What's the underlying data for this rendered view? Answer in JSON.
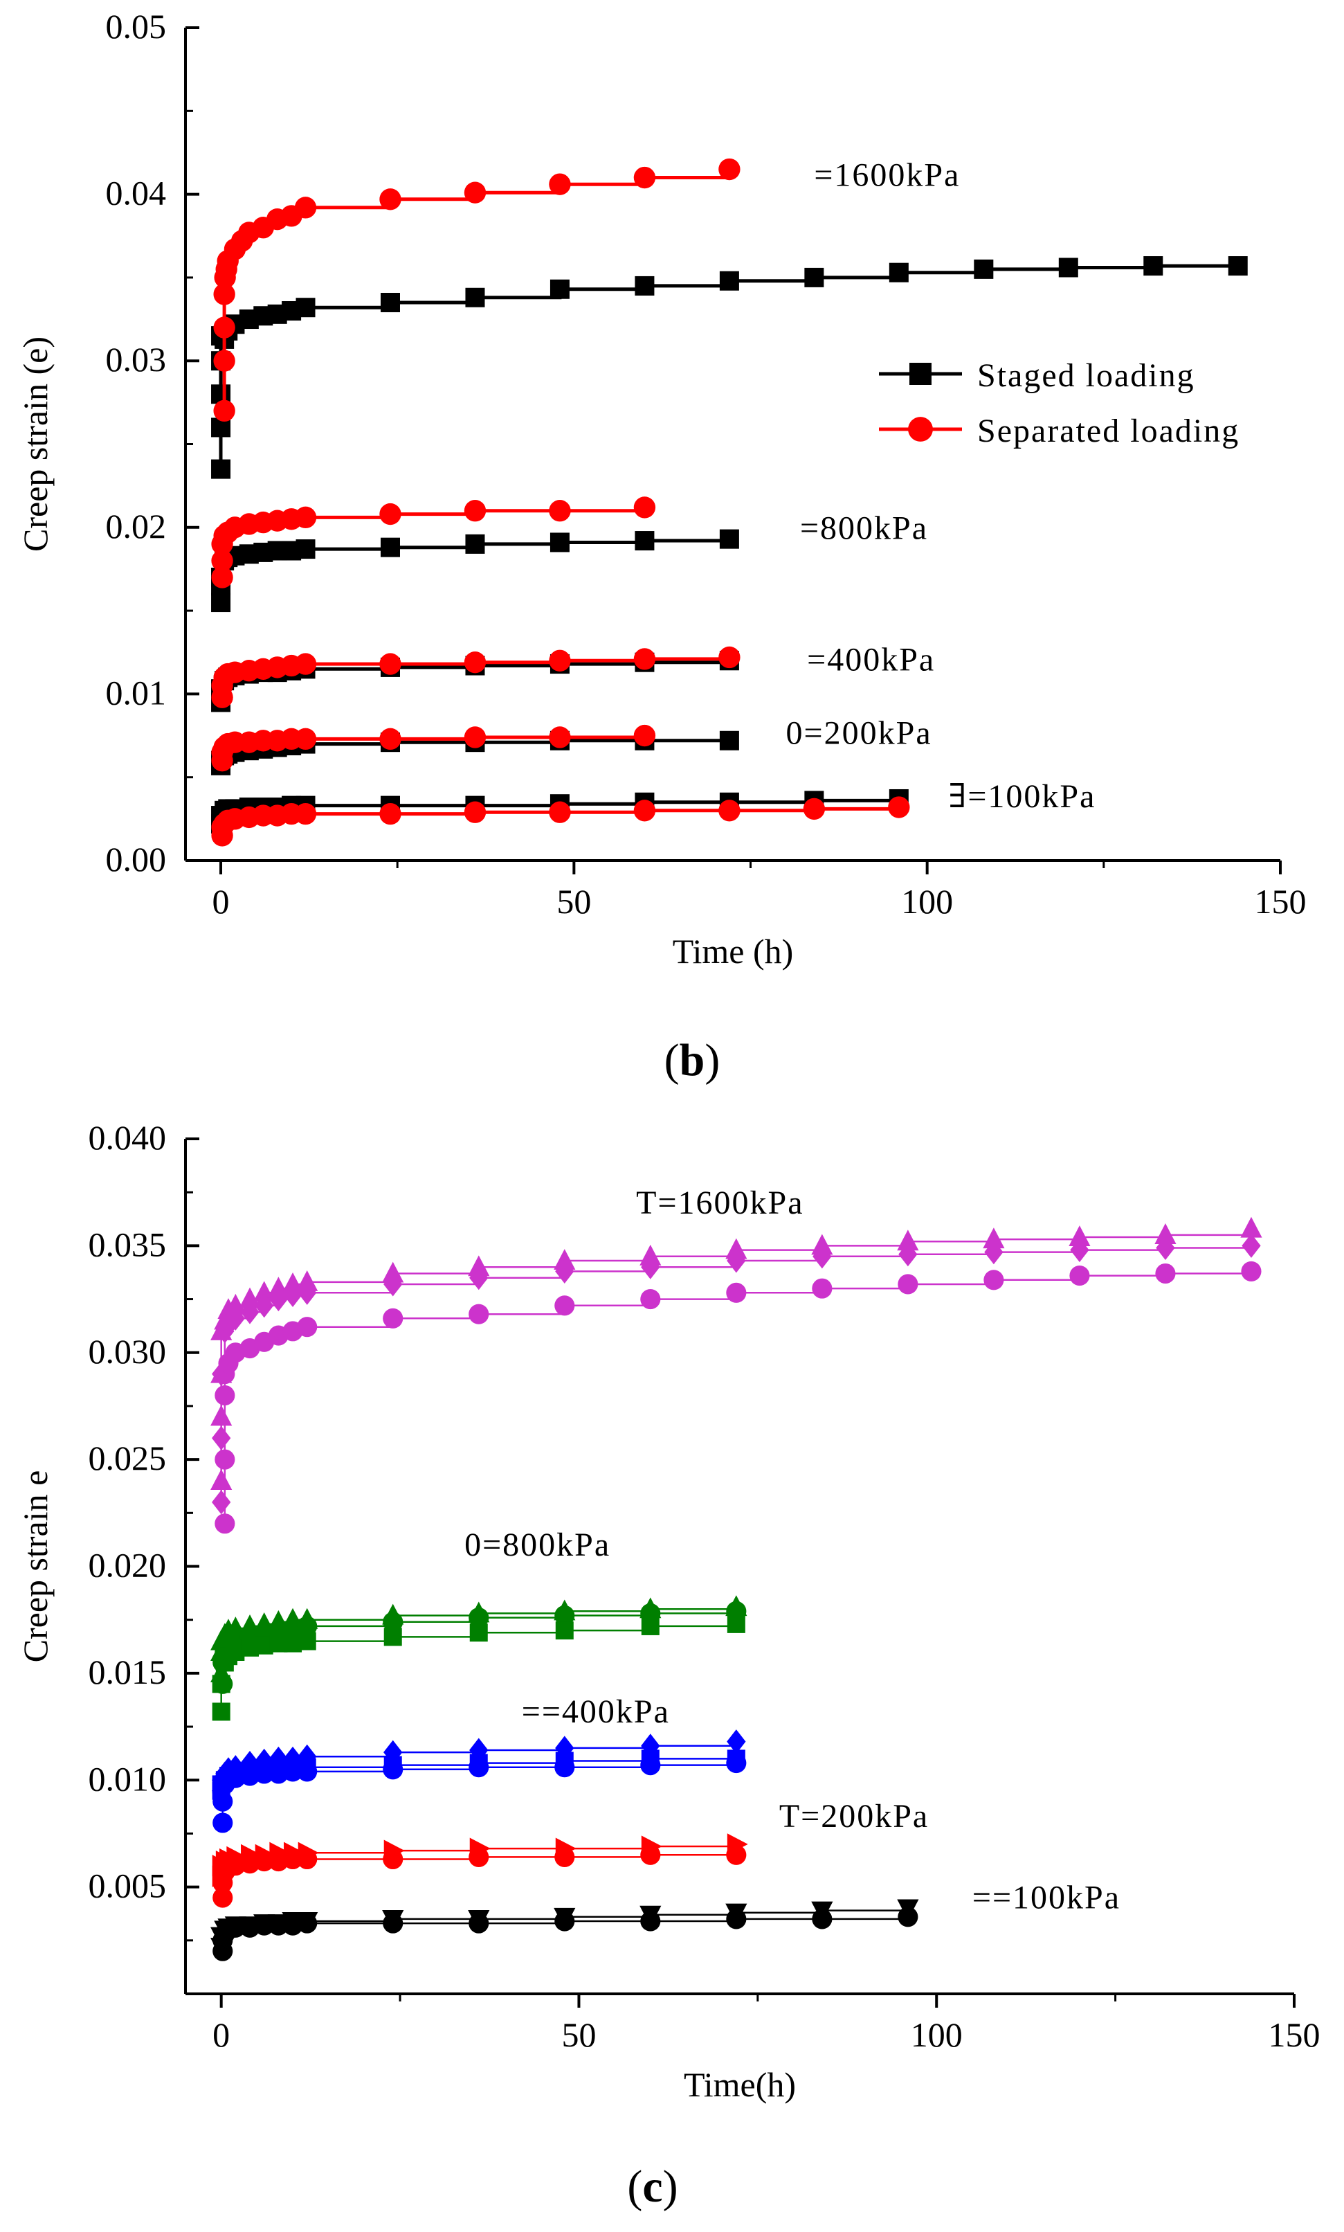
{
  "chart_data": [
    {
      "type": "line",
      "panel_label": "b",
      "xlabel": "Time (h)",
      "ylabel": "Creep strain (e)",
      "xlim": [
        -5,
        150
      ],
      "ylim": [
        0.0,
        0.05
      ],
      "x_ticks": [
        "0",
        "50",
        "100",
        "150"
      ],
      "y_ticks": [
        "0.00",
        "0.01",
        "0.02",
        "0.03",
        "0.04",
        "0.05"
      ],
      "legend_position": "right-middle",
      "legend": [
        {
          "name": "Staged loading",
          "color": "#000000",
          "marker": "square"
        },
        {
          "name": "Separated loading",
          "color": "#ff0000",
          "marker": "circle"
        }
      ],
      "annotations": [
        {
          "text": "=1600kPa",
          "at": [
            84,
            0.0405
          ]
        },
        {
          "text": "=800kPa",
          "at": [
            82,
            0.0193
          ]
        },
        {
          "text": "=400kPa",
          "at": [
            83,
            0.0114
          ]
        },
        {
          "text": "0=200kPa",
          "at": [
            80,
            0.007
          ]
        },
        {
          "text": "∃=100kPa",
          "at": [
            103,
            0.0032
          ]
        }
      ],
      "series": [
        {
          "name": "Staged loading",
          "color": "#000000",
          "marker": "square",
          "x": [
            0,
            0,
            0,
            0,
            0,
            0.5,
            1,
            2,
            4,
            6,
            8,
            10,
            12,
            24,
            36,
            48,
            60,
            72,
            84,
            96,
            108,
            120,
            132,
            144
          ],
          "y": [
            0.0235,
            0.026,
            0.028,
            0.03,
            0.0315,
            0.0313,
            0.0318,
            0.0322,
            0.0325,
            0.0327,
            0.0328,
            0.033,
            0.0332,
            0.0335,
            0.0338,
            0.0343,
            0.0345,
            0.0348,
            0.035,
            0.0353,
            0.0355,
            0.0356,
            0.0357,
            0.0357
          ]
        },
        {
          "name": "Separated loading",
          "color": "#ff0000",
          "marker": "circle",
          "x": [
            0.5,
            0.5,
            0.5,
            0.5,
            0.6,
            0.8,
            1,
            2,
            3,
            4,
            6,
            8,
            10,
            12,
            24,
            36,
            48,
            60,
            72
          ],
          "y": [
            0.027,
            0.03,
            0.032,
            0.034,
            0.035,
            0.0355,
            0.036,
            0.0367,
            0.0372,
            0.0377,
            0.038,
            0.0385,
            0.0387,
            0.0392,
            0.0397,
            0.0401,
            0.0406,
            0.041,
            0.0415
          ]
        },
        {
          "name": "Staged loading",
          "color": "#000000",
          "marker": "square",
          "x": [
            0,
            0,
            0,
            0.5,
            1,
            2,
            4,
            6,
            8,
            10,
            12,
            24,
            36,
            48,
            60,
            72
          ],
          "y": [
            0.0155,
            0.0165,
            0.017,
            0.018,
            0.0182,
            0.0183,
            0.0184,
            0.0185,
            0.0186,
            0.0186,
            0.0187,
            0.0188,
            0.019,
            0.0191,
            0.0192,
            0.0193
          ]
        },
        {
          "name": "Separated loading",
          "color": "#ff0000",
          "marker": "circle",
          "x": [
            0.2,
            0.2,
            0.2,
            0.5,
            1,
            2,
            4,
            6,
            8,
            10,
            12,
            24,
            36,
            48,
            60
          ],
          "y": [
            0.017,
            0.018,
            0.019,
            0.0195,
            0.0197,
            0.02,
            0.0202,
            0.0203,
            0.0204,
            0.0205,
            0.0206,
            0.0208,
            0.021,
            0.021,
            0.0212
          ]
        },
        {
          "name": "Staged loading",
          "color": "#000000",
          "marker": "square",
          "x": [
            0,
            0,
            0.5,
            1,
            2,
            4,
            6,
            8,
            10,
            12,
            24,
            36,
            48,
            60,
            72
          ],
          "y": [
            0.0095,
            0.0103,
            0.0108,
            0.011,
            0.0111,
            0.0112,
            0.0113,
            0.0113,
            0.0114,
            0.0115,
            0.0116,
            0.0117,
            0.0118,
            0.0119,
            0.012
          ]
        },
        {
          "name": "Separated loading",
          "color": "#ff0000",
          "marker": "circle",
          "x": [
            0.2,
            0.2,
            0.5,
            1,
            2,
            4,
            6,
            8,
            10,
            12,
            24,
            36,
            48,
            60,
            72
          ],
          "y": [
            0.0098,
            0.0105,
            0.011,
            0.0112,
            0.0113,
            0.0114,
            0.0115,
            0.0116,
            0.0117,
            0.0118,
            0.0118,
            0.0119,
            0.012,
            0.0121,
            0.0122
          ]
        },
        {
          "name": "Staged loading",
          "color": "#000000",
          "marker": "square",
          "x": [
            0,
            0,
            0.5,
            1,
            2,
            4,
            6,
            8,
            10,
            12,
            24,
            36,
            48,
            60,
            72
          ],
          "y": [
            0.0057,
            0.006,
            0.0063,
            0.0064,
            0.0065,
            0.0066,
            0.0067,
            0.0068,
            0.0069,
            0.007,
            0.0071,
            0.0071,
            0.0072,
            0.0072,
            0.0072
          ]
        },
        {
          "name": "Separated loading",
          "color": "#ff0000",
          "marker": "circle",
          "x": [
            0.2,
            0.2,
            0.5,
            1,
            2,
            4,
            6,
            8,
            10,
            12,
            24,
            36,
            48,
            60
          ],
          "y": [
            0.006,
            0.0065,
            0.0068,
            0.007,
            0.0071,
            0.0071,
            0.0072,
            0.0072,
            0.0073,
            0.0073,
            0.0073,
            0.0074,
            0.0074,
            0.0075
          ]
        },
        {
          "name": "Staged loading",
          "color": "#000000",
          "marker": "square",
          "x": [
            0,
            0,
            0.5,
            1,
            2,
            4,
            6,
            8,
            10,
            12,
            24,
            36,
            48,
            60,
            72,
            84,
            96
          ],
          "y": [
            0.0022,
            0.0027,
            0.003,
            0.0031,
            0.0031,
            0.0032,
            0.0032,
            0.0032,
            0.0033,
            0.0033,
            0.0033,
            0.0033,
            0.0034,
            0.0035,
            0.0035,
            0.0036,
            0.0037
          ]
        },
        {
          "name": "Separated loading",
          "color": "#ff0000",
          "marker": "circle",
          "x": [
            0.2,
            0.2,
            0.5,
            1,
            2,
            4,
            6,
            8,
            10,
            12,
            24,
            36,
            48,
            60,
            72,
            84,
            96
          ],
          "y": [
            0.0015,
            0.002,
            0.0022,
            0.0024,
            0.0025,
            0.0026,
            0.0027,
            0.0027,
            0.0028,
            0.0028,
            0.0028,
            0.0029,
            0.0029,
            0.003,
            0.003,
            0.0031,
            0.0032
          ]
        }
      ]
    },
    {
      "type": "line",
      "panel_label": "c",
      "xlabel": "Time(h)",
      "ylabel": "Creep strain e",
      "xlim": [
        -5,
        150
      ],
      "ylim": [
        0.0,
        0.04
      ],
      "x_ticks": [
        "0",
        "50",
        "100",
        "150"
      ],
      "y_ticks": [
        "0.005",
        "0.010",
        "0.015",
        "0.020",
        "0.025",
        "0.030",
        "0.035",
        "0.040"
      ],
      "annotations": [
        {
          "text": "T=1600kPa",
          "at": [
            58,
            0.0365
          ]
        },
        {
          "text": "0=800kPa",
          "at": [
            34,
            0.0205
          ]
        },
        {
          "text": "==400kPa",
          "at": [
            42,
            0.0127
          ]
        },
        {
          "text": "T=200kPa",
          "at": [
            78,
            0.0078
          ]
        },
        {
          "text": "==100kPa",
          "at": [
            105,
            0.004
          ]
        }
      ],
      "series": [
        {
          "color": "#cc33cc",
          "marker": "triangle-up",
          "x": [
            0,
            0,
            0,
            0,
            0.5,
            1,
            2,
            4,
            6,
            8,
            10,
            12,
            24,
            36,
            48,
            60,
            72,
            84,
            96,
            108,
            120,
            132,
            144
          ],
          "y": [
            0.024,
            0.027,
            0.029,
            0.031,
            0.0315,
            0.032,
            0.0322,
            0.0325,
            0.0328,
            0.033,
            0.0332,
            0.0333,
            0.0337,
            0.034,
            0.0343,
            0.0345,
            0.0348,
            0.035,
            0.0352,
            0.0353,
            0.0354,
            0.0355,
            0.0358
          ]
        },
        {
          "color": "#cc33cc",
          "marker": "diamond",
          "x": [
            0,
            0,
            0,
            0.5,
            1,
            2,
            4,
            6,
            8,
            10,
            12,
            24,
            36,
            48,
            60,
            72,
            84,
            96,
            108,
            120,
            132,
            144
          ],
          "y": [
            0.023,
            0.026,
            0.029,
            0.031,
            0.0313,
            0.0316,
            0.0319,
            0.0322,
            0.0325,
            0.0327,
            0.0328,
            0.0332,
            0.0335,
            0.0338,
            0.034,
            0.0343,
            0.0345,
            0.0346,
            0.0347,
            0.0348,
            0.0349,
            0.035
          ]
        },
        {
          "color": "#cc33cc",
          "marker": "circle",
          "x": [
            0.5,
            0.5,
            0.5,
            0.5,
            1,
            2,
            4,
            6,
            8,
            10,
            12,
            24,
            36,
            48,
            60,
            72,
            84,
            96,
            108,
            120,
            132,
            144
          ],
          "y": [
            0.022,
            0.025,
            0.028,
            0.029,
            0.0295,
            0.03,
            0.0302,
            0.0305,
            0.0308,
            0.031,
            0.0312,
            0.0316,
            0.0318,
            0.0322,
            0.0325,
            0.0328,
            0.033,
            0.0332,
            0.0334,
            0.0336,
            0.0337,
            0.0338
          ]
        },
        {
          "color": "#007f00",
          "marker": "triangle-up",
          "x": [
            0,
            0,
            0,
            0.5,
            1,
            2,
            4,
            6,
            8,
            10,
            12,
            24,
            36,
            48,
            60,
            72
          ],
          "y": [
            0.015,
            0.016,
            0.0165,
            0.0168,
            0.017,
            0.0171,
            0.0172,
            0.0173,
            0.0174,
            0.0175,
            0.0175,
            0.0177,
            0.0178,
            0.0179,
            0.018,
            0.0181
          ]
        },
        {
          "color": "#007f00",
          "marker": "circle",
          "x": [
            0.2,
            0.2,
            0.5,
            1,
            2,
            4,
            6,
            8,
            10,
            12,
            24,
            36,
            48,
            60,
            72
          ],
          "y": [
            0.0145,
            0.0155,
            0.016,
            0.0162,
            0.0165,
            0.0167,
            0.0168,
            0.017,
            0.0171,
            0.0172,
            0.0174,
            0.0176,
            0.0177,
            0.0178,
            0.0179
          ]
        },
        {
          "color": "#007f00",
          "marker": "square",
          "x": [
            0,
            0,
            0.5,
            1,
            2,
            4,
            6,
            8,
            10,
            12,
            24,
            36,
            48,
            60,
            72
          ],
          "y": [
            0.0132,
            0.0145,
            0.0155,
            0.0158,
            0.016,
            0.0162,
            0.0163,
            0.0164,
            0.0164,
            0.0165,
            0.0167,
            0.0169,
            0.017,
            0.0172,
            0.0173
          ]
        },
        {
          "color": "#0000ff",
          "marker": "diamond",
          "x": [
            0,
            0,
            0.5,
            1,
            2,
            4,
            6,
            8,
            10,
            12,
            24,
            36,
            48,
            60,
            72
          ],
          "y": [
            0.0095,
            0.01,
            0.0103,
            0.0105,
            0.0106,
            0.0108,
            0.0109,
            0.011,
            0.011,
            0.0111,
            0.0113,
            0.0114,
            0.0115,
            0.0116,
            0.0118
          ]
        },
        {
          "color": "#0000ff",
          "marker": "circle",
          "x": [
            0.2,
            0.2,
            0.5,
            1,
            2,
            4,
            6,
            8,
            10,
            12,
            24,
            36,
            48,
            60,
            72
          ],
          "y": [
            0.008,
            0.009,
            0.0098,
            0.01,
            0.0101,
            0.0102,
            0.0103,
            0.0103,
            0.0104,
            0.0104,
            0.0105,
            0.0106,
            0.0106,
            0.0107,
            0.0108
          ]
        },
        {
          "color": "#0000ff",
          "marker": "square",
          "x": [
            0,
            0,
            0.5,
            1,
            2,
            4,
            6,
            8,
            10,
            12,
            24,
            36,
            48,
            60,
            72
          ],
          "y": [
            0.0095,
            0.0098,
            0.01,
            0.0102,
            0.0103,
            0.0104,
            0.0105,
            0.0105,
            0.0106,
            0.0106,
            0.0107,
            0.0108,
            0.0109,
            0.011,
            0.011
          ]
        },
        {
          "color": "#ff0000",
          "marker": "triangle-right",
          "x": [
            0,
            0,
            0.5,
            1,
            2,
            4,
            6,
            8,
            10,
            12,
            24,
            36,
            48,
            60,
            72
          ],
          "y": [
            0.0055,
            0.006,
            0.0062,
            0.0063,
            0.0064,
            0.0065,
            0.0065,
            0.0066,
            0.0066,
            0.0066,
            0.0067,
            0.0068,
            0.0068,
            0.0069,
            0.007
          ]
        },
        {
          "color": "#ff0000",
          "marker": "circle",
          "x": [
            0.2,
            0.2,
            0.5,
            1,
            2,
            4,
            6,
            8,
            10,
            12,
            24,
            36,
            48,
            60,
            72
          ],
          "y": [
            0.0045,
            0.0052,
            0.0057,
            0.0059,
            0.006,
            0.0061,
            0.0062,
            0.0062,
            0.0063,
            0.0063,
            0.0063,
            0.0064,
            0.0064,
            0.0065,
            0.0065
          ]
        },
        {
          "color": "#000000",
          "marker": "triangle-down",
          "x": [
            0,
            0,
            0.5,
            1,
            2,
            4,
            6,
            8,
            10,
            12,
            24,
            36,
            48,
            60,
            72,
            84,
            96
          ],
          "y": [
            0.0022,
            0.0027,
            0.003,
            0.0031,
            0.0032,
            0.0032,
            0.0033,
            0.0033,
            0.0034,
            0.0034,
            0.0035,
            0.0035,
            0.0036,
            0.0037,
            0.0038,
            0.0039,
            0.004
          ]
        },
        {
          "color": "#000000",
          "marker": "circle",
          "x": [
            0.2,
            0.2,
            0.5,
            1,
            2,
            4,
            6,
            8,
            10,
            12,
            24,
            36,
            48,
            60,
            72,
            84,
            96
          ],
          "y": [
            0.002,
            0.0025,
            0.0028,
            0.003,
            0.0031,
            0.0031,
            0.0032,
            0.0032,
            0.0032,
            0.0033,
            0.0033,
            0.0033,
            0.0034,
            0.0034,
            0.0035,
            0.0035,
            0.0036
          ]
        }
      ]
    }
  ]
}
